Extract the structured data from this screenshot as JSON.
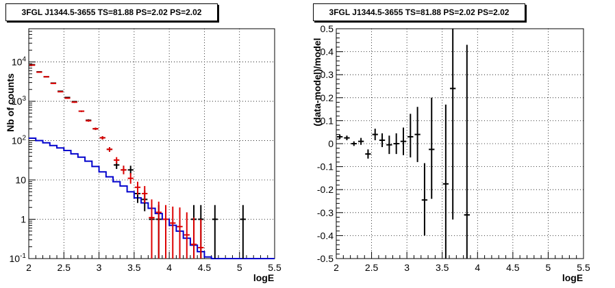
{
  "chart_data": [
    {
      "type": "line",
      "title": "3FGL J1344.5-3655 TS=81.88 PS=2.02 PS=2.02",
      "xlabel": "logE",
      "ylabel": "Nb of counts",
      "xlim": [
        2,
        5.5
      ],
      "ylim": [
        0.1,
        70000
      ],
      "yscale": "log",
      "grid": true,
      "x_ticks": [
        "2",
        "2.5",
        "3",
        "3.5",
        "4",
        "4.5",
        "5",
        "5.5"
      ],
      "y_ticks": [
        {
          "value": 0.1,
          "label": "10-1",
          "base": "10",
          "exp": "-1"
        },
        {
          "value": 1,
          "label": "1",
          "base": "1",
          "exp": ""
        },
        {
          "value": 10,
          "label": "10",
          "base": "10",
          "exp": ""
        },
        {
          "value": 100,
          "label": "102",
          "base": "10",
          "exp": "2"
        },
        {
          "value": 1000,
          "label": "103",
          "base": "10",
          "exp": "3"
        },
        {
          "value": 10000,
          "label": "104",
          "base": "10",
          "exp": "4"
        }
      ],
      "series": [
        {
          "role": "data",
          "color": "#000000",
          "style": "errorbar",
          "points": [
            {
              "x": 2.05,
              "y": 8500,
              "lo": 8300,
              "hi": 8700
            },
            {
              "x": 2.15,
              "y": 5600,
              "lo": 5450,
              "hi": 5750
            },
            {
              "x": 2.25,
              "y": 4200,
              "lo": 4080,
              "hi": 4320
            },
            {
              "x": 2.35,
              "y": 2900,
              "lo": 2800,
              "hi": 3000
            },
            {
              "x": 2.45,
              "y": 1800,
              "lo": 1740,
              "hi": 1860
            },
            {
              "x": 2.55,
              "y": 1250,
              "lo": 1200,
              "hi": 1300
            },
            {
              "x": 2.65,
              "y": 980,
              "lo": 940,
              "hi": 1020
            },
            {
              "x": 2.75,
              "y": 560,
              "lo": 535,
              "hi": 585
            },
            {
              "x": 2.85,
              "y": 330,
              "lo": 312,
              "hi": 348
            },
            {
              "x": 2.95,
              "y": 200,
              "lo": 186,
              "hi": 214
            },
            {
              "x": 3.05,
              "y": 118,
              "lo": 107,
              "hi": 129
            },
            {
              "x": 3.15,
              "y": 60,
              "lo": 52,
              "hi": 68
            },
            {
              "x": 3.25,
              "y": 24,
              "lo": 19,
              "hi": 30
            },
            {
              "x": 3.35,
              "y": 18,
              "lo": 14,
              "hi": 23
            },
            {
              "x": 3.45,
              "y": 18,
              "lo": 14,
              "hi": 23
            },
            {
              "x": 3.55,
              "y": 4.5,
              "lo": 2.6,
              "hi": 7
            },
            {
              "x": 3.65,
              "y": 3.2,
              "lo": 1.6,
              "hi": 5.4
            },
            {
              "x": 3.75,
              "y": 1,
              "lo": 0.1,
              "hi": 2.3
            },
            {
              "x": 3.85,
              "y": 1,
              "lo": 0.1,
              "hi": 2.3
            },
            {
              "x": 4.35,
              "y": 1,
              "lo": 0.1,
              "hi": 2.3
            },
            {
              "x": 4.45,
              "y": 1,
              "lo": 0.1,
              "hi": 2.3
            },
            {
              "x": 4.65,
              "y": 1,
              "lo": 0.1,
              "hi": 2.3
            },
            {
              "x": 5.05,
              "y": 1,
              "lo": 0.1,
              "hi": 2.3
            }
          ]
        },
        {
          "role": "model-total",
          "color": "#dd0000",
          "style": "errorbar",
          "points": [
            {
              "x": 2.05,
              "y": 8300,
              "lo": 8100,
              "hi": 8500
            },
            {
              "x": 2.15,
              "y": 5500,
              "lo": 5350,
              "hi": 5650
            },
            {
              "x": 2.25,
              "y": 4200,
              "lo": 4080,
              "hi": 4320
            },
            {
              "x": 2.35,
              "y": 2850,
              "lo": 2750,
              "hi": 2950
            },
            {
              "x": 2.45,
              "y": 1750,
              "lo": 1690,
              "hi": 1810
            },
            {
              "x": 2.55,
              "y": 1200,
              "lo": 1150,
              "hi": 1250
            },
            {
              "x": 2.65,
              "y": 950,
              "lo": 910,
              "hi": 990
            },
            {
              "x": 2.75,
              "y": 560,
              "lo": 535,
              "hi": 585
            },
            {
              "x": 2.85,
              "y": 320,
              "lo": 302,
              "hi": 338
            },
            {
              "x": 2.95,
              "y": 200,
              "lo": 186,
              "hi": 214
            },
            {
              "x": 3.05,
              "y": 118,
              "lo": 107,
              "hi": 129
            },
            {
              "x": 3.15,
              "y": 60,
              "lo": 52,
              "hi": 68
            },
            {
              "x": 3.25,
              "y": 32,
              "lo": 26,
              "hi": 38
            },
            {
              "x": 3.35,
              "y": 18,
              "lo": 14,
              "hi": 23
            },
            {
              "x": 3.45,
              "y": 11,
              "lo": 8,
              "hi": 15
            },
            {
              "x": 3.55,
              "y": 6.5,
              "lo": 4.2,
              "hi": 9
            },
            {
              "x": 3.65,
              "y": 4.5,
              "lo": 2.6,
              "hi": 7
            },
            {
              "x": 3.75,
              "y": 1.1,
              "lo": 0.1,
              "hi": 3.2
            },
            {
              "x": 3.85,
              "y": 1.5,
              "lo": 0.1,
              "hi": 2.8
            },
            {
              "x": 3.95,
              "y": 1,
              "lo": 0.1,
              "hi": 2.3
            },
            {
              "x": 4.05,
              "y": 0.8,
              "lo": 0.1,
              "hi": 2.1
            },
            {
              "x": 4.15,
              "y": 0.65,
              "lo": 0.1,
              "hi": 2.0
            },
            {
              "x": 4.25,
              "y": 0.4,
              "lo": 0.1,
              "hi": 1.5
            },
            {
              "x": 4.35,
              "y": 0.23,
              "lo": 0.1,
              "hi": 1.1
            },
            {
              "x": 4.45,
              "y": 0.19,
              "lo": 0.1,
              "hi": 1.0
            }
          ]
        },
        {
          "role": "model-background",
          "color": "#0000cc",
          "style": "step",
          "edges": [
            2.0,
            2.1,
            2.2,
            2.3,
            2.4,
            2.5,
            2.6,
            2.7,
            2.8,
            2.9,
            3.0,
            3.1,
            3.2,
            3.3,
            3.4,
            3.5,
            3.6,
            3.7,
            3.8,
            3.9,
            4.0,
            4.1,
            4.2,
            4.3,
            4.4,
            4.5,
            4.6,
            4.7,
            4.8,
            4.9,
            5.0,
            5.1,
            5.2,
            5.3,
            5.4,
            5.5
          ],
          "values": [
            115,
            100,
            88,
            75,
            65,
            56,
            46,
            38,
            30,
            22,
            16,
            12,
            9,
            7,
            5,
            3.5,
            2.6,
            1.9,
            1.4,
            1.0,
            0.7,
            0.5,
            0.33,
            0.22,
            0.15,
            0.11,
            0.1,
            0.1,
            0.1,
            0.1,
            0.1,
            0.1,
            0.1,
            0.1,
            0.1
          ]
        }
      ]
    },
    {
      "type": "scatter",
      "title": "3FGL J1344.5-3655 TS=81.88 PS=2.02 PS=2.02",
      "xlabel": "logE",
      "ylabel": "(data-model)/model",
      "xlim": [
        2,
        5.5
      ],
      "ylim": [
        -0.5,
        0.5
      ],
      "grid": true,
      "x_ticks": [
        "2",
        "2.5",
        "3",
        "3.5",
        "4",
        "4.5",
        "5",
        "5.5"
      ],
      "y_ticks": [
        "-0.5",
        "-0.4",
        "-0.3",
        "-0.2",
        "-0.1",
        "0",
        "0.1",
        "0.2",
        "0.3",
        "0.4",
        "0.5"
      ],
      "series": [
        {
          "role": "residuals",
          "color": "#000000",
          "style": "errorbar",
          "points": [
            {
              "x": 2.05,
              "y": 0.03,
              "lo": 0.02,
              "hi": 0.04
            },
            {
              "x": 2.15,
              "y": 0.025,
              "lo": 0.015,
              "hi": 0.035
            },
            {
              "x": 2.25,
              "y": 0.0,
              "lo": -0.01,
              "hi": 0.01
            },
            {
              "x": 2.35,
              "y": 0.01,
              "lo": -0.005,
              "hi": 0.025
            },
            {
              "x": 2.45,
              "y": -0.045,
              "lo": -0.065,
              "hi": -0.025
            },
            {
              "x": 2.55,
              "y": 0.04,
              "lo": 0.015,
              "hi": 0.065
            },
            {
              "x": 2.65,
              "y": 0.015,
              "lo": -0.015,
              "hi": 0.045
            },
            {
              "x": 2.75,
              "y": -0.005,
              "lo": -0.045,
              "hi": 0.035
            },
            {
              "x": 2.85,
              "y": 0.0,
              "lo": -0.045,
              "hi": 0.045
            },
            {
              "x": 2.95,
              "y": 0.01,
              "lo": -0.05,
              "hi": 0.07
            },
            {
              "x": 3.05,
              "y": 0.03,
              "lo": -0.06,
              "hi": 0.13
            },
            {
              "x": 3.15,
              "y": 0.04,
              "lo": -0.08,
              "hi": 0.16
            },
            {
              "x": 3.25,
              "y": -0.245,
              "lo": -0.4,
              "hi": -0.085
            },
            {
              "x": 3.35,
              "y": -0.025,
              "lo": -0.24,
              "hi": 0.2
            },
            {
              "x": 3.55,
              "y": -0.175,
              "lo": -0.5,
              "hi": 0.17
            },
            {
              "x": 3.65,
              "y": 0.24,
              "lo": -0.33,
              "hi": 0.5
            },
            {
              "x": 3.85,
              "y": -0.31,
              "lo": -0.5,
              "hi": 0.43
            }
          ]
        }
      ]
    }
  ]
}
